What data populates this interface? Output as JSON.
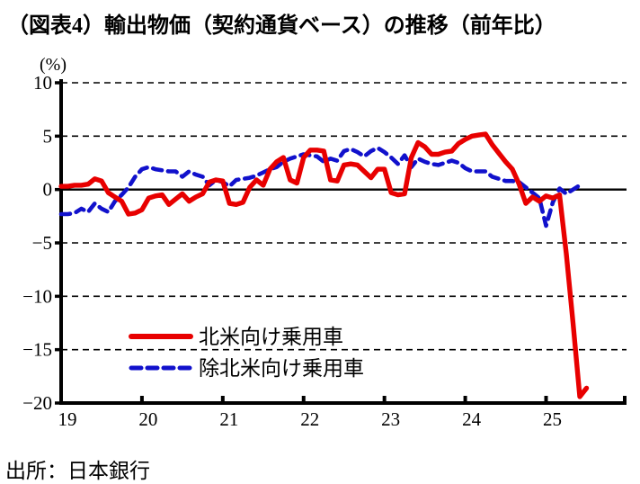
{
  "title": "（図表4）輸出物価（契約通貨ベース）の推移（前年比）",
  "source": "出所：日本銀行",
  "chart_data": {
    "type": "line",
    "title": "（図表4）輸出物価（契約通貨ベース）の推移（前年比）",
    "xlabel": "",
    "ylabel": "(%)",
    "ylim": [
      -20,
      10
    ],
    "yticks": [
      10,
      5,
      0,
      -5,
      -10,
      -15,
      -20
    ],
    "ytick_labels": [
      "10",
      "5",
      "0",
      "−5",
      "−10",
      "−15",
      "−20"
    ],
    "xtick_labels": [
      "19",
      "20",
      "21",
      "22",
      "23",
      "24",
      "25"
    ],
    "x_frequency": "monthly",
    "x_range": "2019-01 to 2025-07",
    "grid": "horizontal dashed black",
    "zero_line": true,
    "legend_position": "inside lower-left",
    "series": [
      {
        "name": "北米向け乗用車",
        "color": "#e80000",
        "style": "solid",
        "values": [
          0.3,
          0.3,
          0.4,
          0.4,
          0.5,
          1.0,
          0.8,
          -0.3,
          -0.7,
          -1.1,
          -2.3,
          -2.2,
          -1.9,
          -0.8,
          -0.6,
          -0.5,
          -1.4,
          -0.9,
          -0.4,
          -1.1,
          -0.7,
          -0.4,
          0.7,
          0.9,
          0.8,
          -1.3,
          -1.4,
          -1.2,
          0.2,
          0.9,
          0.4,
          1.9,
          2.6,
          3.0,
          0.9,
          0.6,
          3.0,
          3.7,
          3.7,
          3.6,
          0.9,
          0.8,
          2.3,
          2.4,
          2.3,
          1.7,
          1.1,
          1.9,
          1.9,
          -0.3,
          -0.5,
          -0.4,
          3.0,
          4.4,
          4.0,
          3.3,
          3.3,
          3.5,
          3.6,
          4.3,
          4.7,
          5.0,
          5.1,
          5.2,
          4.2,
          3.4,
          2.6,
          1.9,
          0.5,
          -1.3,
          -0.7,
          -1.1,
          -0.6,
          -0.8,
          -0.5,
          -6.0,
          -12.5,
          -19.4,
          -18.6
        ]
      },
      {
        "name": "除北米向け乗用車",
        "color": "#1111cc",
        "style": "dashed",
        "values": [
          -2.3,
          -2.3,
          -2.2,
          -1.8,
          -2.1,
          -1.3,
          -1.8,
          -2.1,
          -1.1,
          -0.5,
          0.2,
          1.2,
          1.9,
          2.1,
          1.9,
          1.8,
          1.7,
          1.7,
          1.2,
          1.7,
          1.4,
          1.2,
          0.4,
          0.9,
          0.7,
          0.3,
          0.9,
          1.0,
          1.1,
          1.3,
          1.6,
          1.9,
          2.1,
          2.6,
          2.9,
          3.1,
          3.3,
          3.2,
          3.1,
          2.6,
          2.9,
          2.7,
          3.6,
          3.8,
          3.5,
          3.1,
          3.6,
          3.9,
          3.5,
          3.0,
          2.4,
          3.2,
          2.1,
          2.9,
          2.6,
          2.4,
          2.3,
          2.5,
          2.7,
          2.5,
          2.0,
          1.7,
          1.7,
          1.7,
          1.2,
          1.0,
          0.8,
          0.8,
          0.7,
          0.2,
          -0.3,
          -0.8,
          -3.4,
          -1.2,
          0.1,
          -0.4,
          0.0,
          0.4,
          null
        ]
      }
    ]
  }
}
